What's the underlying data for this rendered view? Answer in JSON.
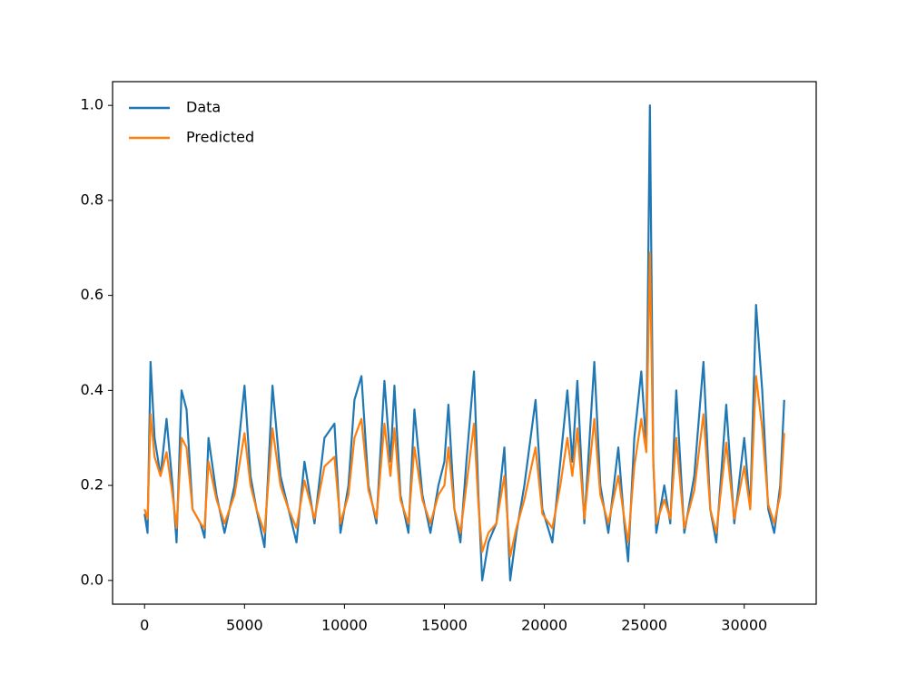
{
  "chart_data": {
    "type": "line",
    "x": [
      0,
      150,
      300,
      500,
      800,
      1100,
      1400,
      1600,
      1850,
      2100,
      2400,
      2800,
      3000,
      3200,
      3600,
      4000,
      4500,
      5000,
      5300,
      5600,
      6000,
      6400,
      6800,
      7200,
      7600,
      8000,
      8500,
      9000,
      9500,
      9800,
      10200,
      10500,
      10850,
      11200,
      11600,
      12000,
      12300,
      12500,
      12800,
      13200,
      13500,
      13900,
      14300,
      14700,
      15000,
      15200,
      15500,
      15800,
      16100,
      16480,
      16700,
      16890,
      17200,
      17600,
      18000,
      18290,
      18600,
      19000,
      19560,
      19900,
      20400,
      20800,
      21150,
      21400,
      21650,
      22000,
      22500,
      22800,
      23200,
      23700,
      24000,
      24190,
      24500,
      24850,
      25100,
      25280,
      25450,
      25600,
      26000,
      26300,
      26600,
      27000,
      27500,
      27960,
      28300,
      28600,
      29100,
      29500,
      30000,
      30300,
      30590,
      30900,
      31200,
      31500,
      31800,
      32000
    ],
    "series": [
      {
        "name": "Data",
        "color": "#1f77b4",
        "values": [
          0.14,
          0.1,
          0.46,
          0.3,
          0.22,
          0.34,
          0.2,
          0.08,
          0.4,
          0.36,
          0.15,
          0.12,
          0.09,
          0.3,
          0.18,
          0.1,
          0.2,
          0.41,
          0.22,
          0.15,
          0.07,
          0.41,
          0.22,
          0.15,
          0.08,
          0.25,
          0.12,
          0.3,
          0.33,
          0.1,
          0.2,
          0.38,
          0.43,
          0.2,
          0.12,
          0.42,
          0.25,
          0.41,
          0.18,
          0.1,
          0.36,
          0.18,
          0.1,
          0.2,
          0.25,
          0.37,
          0.15,
          0.08,
          0.25,
          0.44,
          0.18,
          0.0,
          0.08,
          0.12,
          0.28,
          0.0,
          0.1,
          0.2,
          0.38,
          0.15,
          0.08,
          0.25,
          0.4,
          0.25,
          0.42,
          0.12,
          0.46,
          0.2,
          0.1,
          0.28,
          0.12,
          0.04,
          0.3,
          0.44,
          0.28,
          1.0,
          0.25,
          0.1,
          0.2,
          0.12,
          0.4,
          0.1,
          0.22,
          0.46,
          0.15,
          0.08,
          0.37,
          0.12,
          0.3,
          0.15,
          0.58,
          0.4,
          0.15,
          0.1,
          0.2,
          0.38
        ]
      },
      {
        "name": "Predicted",
        "color": "#ff7f0e",
        "values": [
          0.15,
          0.13,
          0.35,
          0.26,
          0.22,
          0.27,
          0.18,
          0.11,
          0.3,
          0.28,
          0.15,
          0.12,
          0.11,
          0.25,
          0.17,
          0.12,
          0.18,
          0.31,
          0.2,
          0.15,
          0.1,
          0.32,
          0.2,
          0.15,
          0.11,
          0.21,
          0.13,
          0.24,
          0.26,
          0.12,
          0.18,
          0.3,
          0.34,
          0.19,
          0.13,
          0.33,
          0.22,
          0.32,
          0.17,
          0.12,
          0.28,
          0.17,
          0.12,
          0.18,
          0.2,
          0.28,
          0.15,
          0.1,
          0.2,
          0.33,
          0.16,
          0.06,
          0.1,
          0.12,
          0.22,
          0.05,
          0.11,
          0.17,
          0.28,
          0.14,
          0.11,
          0.2,
          0.3,
          0.22,
          0.32,
          0.13,
          0.34,
          0.18,
          0.12,
          0.22,
          0.13,
          0.08,
          0.24,
          0.34,
          0.27,
          0.69,
          0.25,
          0.12,
          0.17,
          0.13,
          0.3,
          0.11,
          0.19,
          0.35,
          0.15,
          0.1,
          0.29,
          0.13,
          0.24,
          0.15,
          0.43,
          0.32,
          0.16,
          0.12,
          0.18,
          0.31
        ]
      }
    ],
    "xlim": [
      -1600,
      33600
    ],
    "xticks": [
      0,
      5000,
      10000,
      15000,
      20000,
      25000,
      30000
    ],
    "ylim": [
      -0.05,
      1.05
    ],
    "yticks": [
      {
        "value": 0,
        "label": "0.0"
      },
      0.2,
      0.4,
      0.6,
      0.8,
      {
        "value": 1,
        "label": "1.0"
      }
    ],
    "grid": false,
    "legend": "upper left"
  }
}
